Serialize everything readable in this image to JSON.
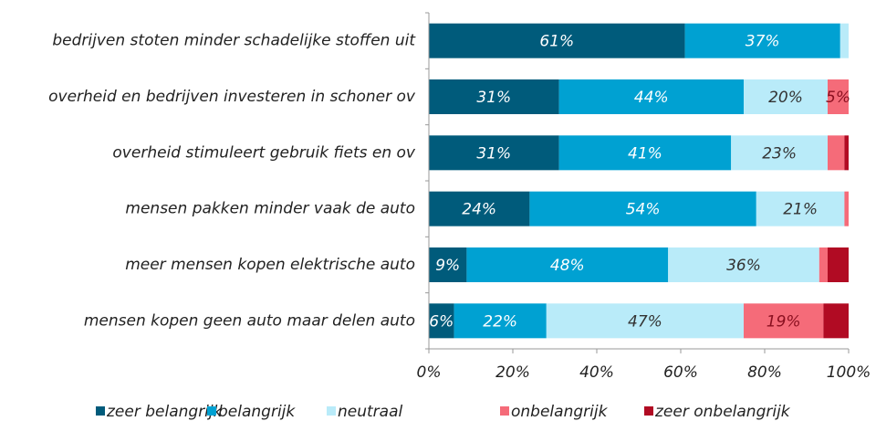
{
  "chart_data": {
    "type": "stacked-bar-horizontal",
    "categories": [
      "bedrijven stoten minder schadelijke stoffen uit",
      "overheid en bedrijven investeren in schoner ov",
      "overheid stimuleert gebruik fiets en ov",
      "mensen pakken minder vaak de auto",
      "meer mensen kopen elektrische auto",
      "mensen kopen geen auto maar delen auto"
    ],
    "series": [
      {
        "name": "zeer belangrijk",
        "color": "#005b7b",
        "values": [
          61,
          31,
          31,
          24,
          9,
          6
        ],
        "value_labels": [
          "61%",
          "31%",
          "31%",
          "24%",
          "9%",
          "6%"
        ]
      },
      {
        "name": "belangrijk",
        "color": "#00a1d2",
        "values": [
          37,
          44,
          41,
          54,
          48,
          22
        ],
        "value_labels": [
          "37%",
          "44%",
          "41%",
          "54%",
          "48%",
          "22%"
        ]
      },
      {
        "name": "neutraal",
        "color": "#b9ebf9",
        "values": [
          2,
          20,
          23,
          21,
          36,
          47
        ],
        "value_labels": [
          null,
          "20%",
          "23%",
          "21%",
          "36%",
          "47%"
        ]
      },
      {
        "name": "onbelangrijk",
        "color": "#f56b79",
        "values": [
          0,
          5,
          4,
          1,
          2,
          19
        ],
        "value_labels": [
          null,
          "5%",
          null,
          null,
          null,
          "19%"
        ]
      },
      {
        "name": "zeer onbelangrijk",
        "color": "#b10b23",
        "values": [
          0,
          0,
          1,
          0,
          5,
          6
        ],
        "value_labels": [
          null,
          null,
          null,
          null,
          null,
          null
        ]
      }
    ],
    "xlim": [
      0,
      100
    ],
    "xticks": [
      {
        "value": 0,
        "label": "0%"
      },
      {
        "value": 20,
        "label": "20%"
      },
      {
        "value": 40,
        "label": "40%"
      },
      {
        "value": 60,
        "label": "60%"
      },
      {
        "value": 80,
        "label": "80%"
      },
      {
        "value": 100,
        "label": "100%"
      }
    ],
    "legend": "bottom"
  }
}
